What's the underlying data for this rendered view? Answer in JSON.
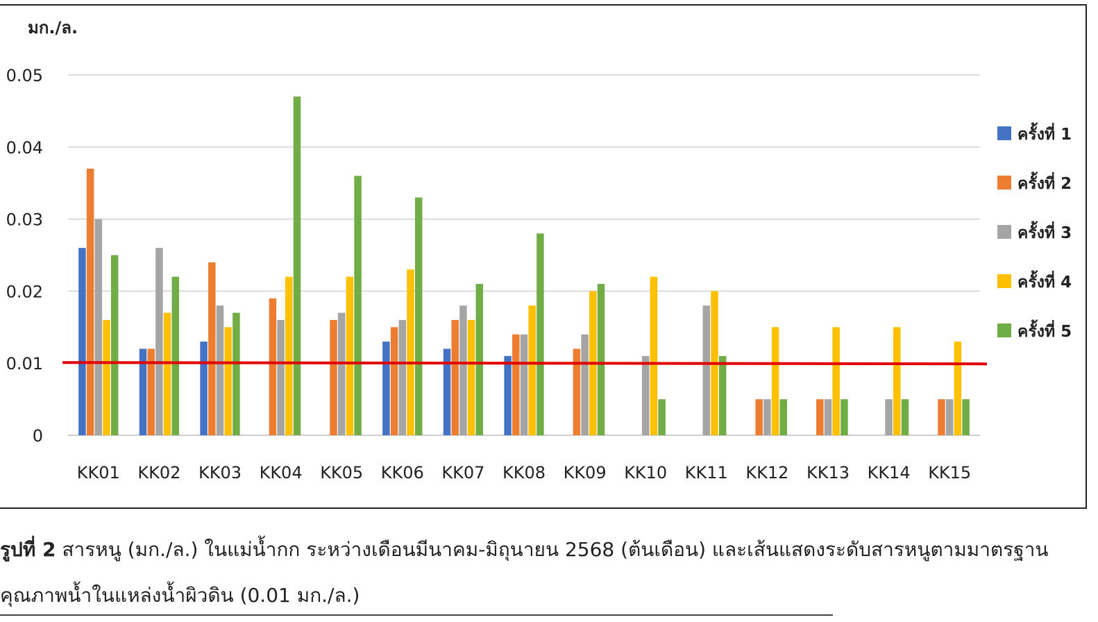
{
  "chart_data": {
    "type": "bar",
    "ylabel": "มก./ล.",
    "ylim": [
      0,
      0.05
    ],
    "yticks": [
      "0",
      "0.01",
      "0.02",
      "0.03",
      "0.04",
      "0.05"
    ],
    "grid": true,
    "legend_position": "right",
    "categories": [
      "KK01",
      "KK02",
      "KK03",
      "KK04",
      "KK05",
      "KK06",
      "KK07",
      "KK08",
      "KK09",
      "KK10",
      "KK11",
      "KK12",
      "KK13",
      "KK14",
      "KK15"
    ],
    "series": [
      {
        "name": "ครั้งที่ 1",
        "color": "#4472c4",
        "values": [
          0.026,
          0.012,
          0.013,
          null,
          null,
          0.013,
          0.012,
          0.011,
          null,
          null,
          null,
          null,
          null,
          null,
          null
        ]
      },
      {
        "name": "ครั้งที่ 2",
        "color": "#ed7d31",
        "values": [
          0.037,
          0.012,
          0.024,
          0.019,
          0.016,
          0.015,
          0.016,
          0.014,
          0.012,
          null,
          null,
          0.005,
          0.005,
          null,
          0.005
        ]
      },
      {
        "name": "ครั้งที่ 3",
        "color": "#a5a5a5",
        "values": [
          0.03,
          0.026,
          0.018,
          0.016,
          0.017,
          0.016,
          0.018,
          0.014,
          0.014,
          0.011,
          0.018,
          0.005,
          0.005,
          0.005,
          0.005
        ]
      },
      {
        "name": "ครั้งที่ 4",
        "color": "#ffc000",
        "values": [
          0.016,
          0.017,
          0.015,
          0.022,
          0.022,
          0.023,
          0.016,
          0.018,
          0.02,
          0.022,
          0.02,
          0.015,
          0.015,
          0.015,
          0.013
        ]
      },
      {
        "name": "ครั้งที่ 5",
        "color": "#70ad47",
        "values": [
          0.025,
          0.022,
          0.017,
          0.047,
          0.036,
          0.033,
          0.021,
          0.028,
          0.021,
          0.005,
          0.011,
          0.005,
          0.005,
          0.005,
          0.005
        ]
      }
    ],
    "reference_line": {
      "value": 0.01,
      "color": "#e00000"
    }
  },
  "caption": {
    "label": "รูปที่ 2",
    "line1": " สารหนู (มก./ล.) ในแม่น้ำกก ระหว่างเดือนมีนาคม-มิถุนายน 2568 (ต้นเดือน) และเส้นแสดงระดับสารหนูตามมาตรฐาน",
    "line2": "คุณภาพน้ำในแหล่งน้ำผิวดิน (0.01 มก./ล.)"
  }
}
